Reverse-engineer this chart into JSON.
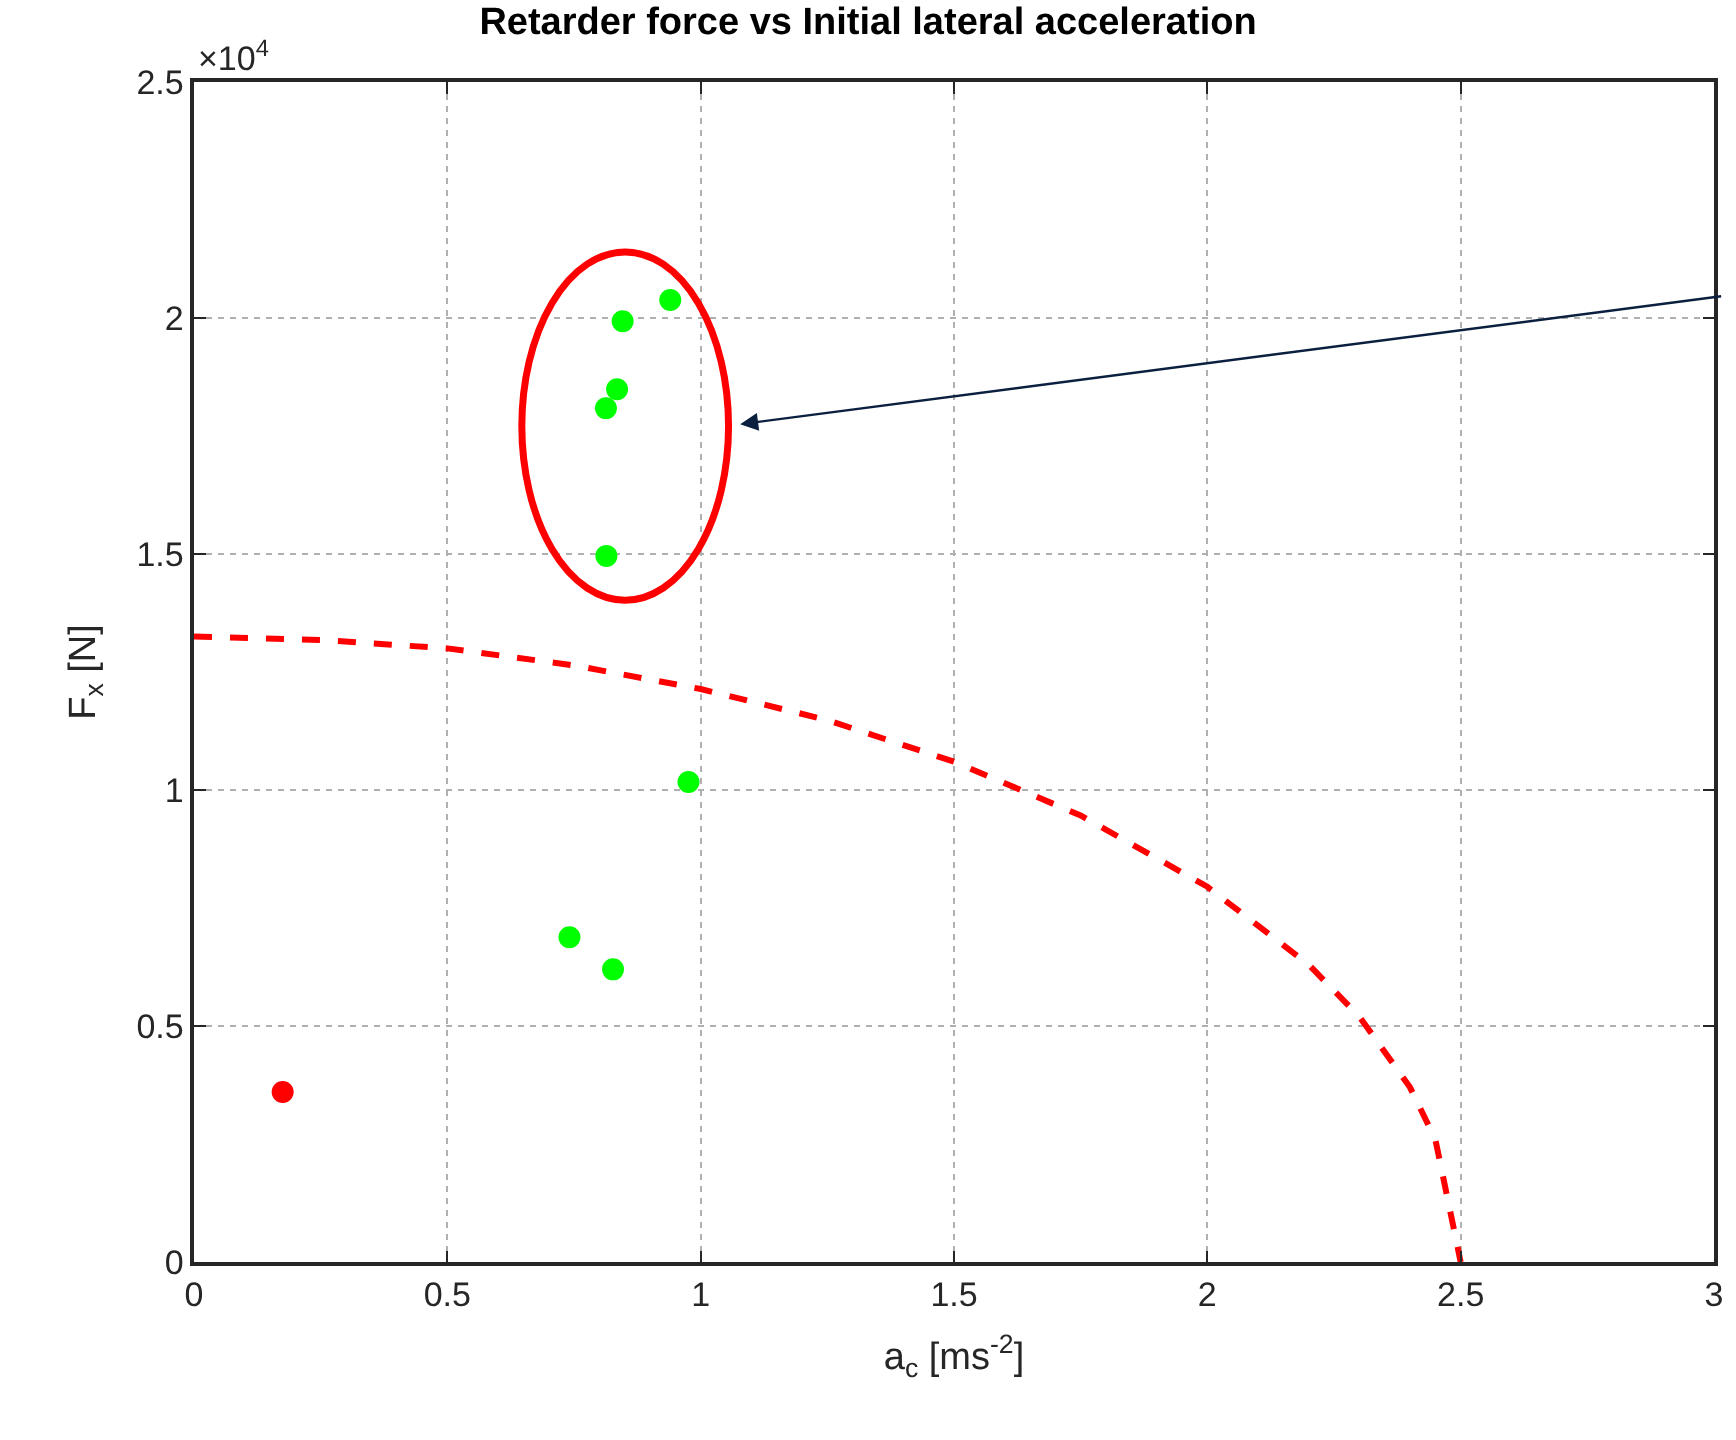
{
  "chart_data": {
    "type": "scatter",
    "title": "Retarder force vs Initial lateral acceleration",
    "xlabel": "a$_{c}$ [ms$^{-2}$]",
    "ylabel": "F$_{x}$ [N]",
    "annotations": [
      "×10$^{4}$"
    ],
    "series": [
      {
        "type": "line",
        "color": "#ff0000",
        "line_style": "dashed",
        "marker": "none",
        "x": [
          0,
          0.25,
          0.5,
          0.75,
          1.0,
          1.25,
          1.5,
          1.75,
          2.0,
          2.2,
          2.3,
          2.4,
          2.45,
          2.5
        ],
        "values": [
          1.325,
          1.318,
          1.3,
          1.264,
          1.214,
          1.148,
          1.06,
          0.946,
          0.795,
          0.63,
          0.52,
          0.37,
          0.26,
          0
        ]
      },
      {
        "color": "#00ff00",
        "marker": "circle",
        "x": [
          0.846,
          0.94,
          0.835,
          0.813,
          0.814,
          0.976,
          0.741,
          0.827
        ],
        "values": [
          1.993,
          2.038,
          1.849,
          1.809,
          1.496,
          1.017,
          0.688,
          0.62
        ]
      },
      {
        "color": "#ff0000",
        "marker": "circle",
        "x": [
          0.175
        ],
        "values": [
          0.36
        ]
      }
    ],
    "xlim": [
      0,
      3
    ],
    "xticks": [
      0,
      0.5,
      1,
      1.5,
      2,
      2.5,
      3
    ],
    "ylim": [
      0,
      2.5
    ],
    "yticks": [
      0,
      0.5,
      1,
      1.5,
      2,
      2.5
    ],
    "grid": true
  }
}
